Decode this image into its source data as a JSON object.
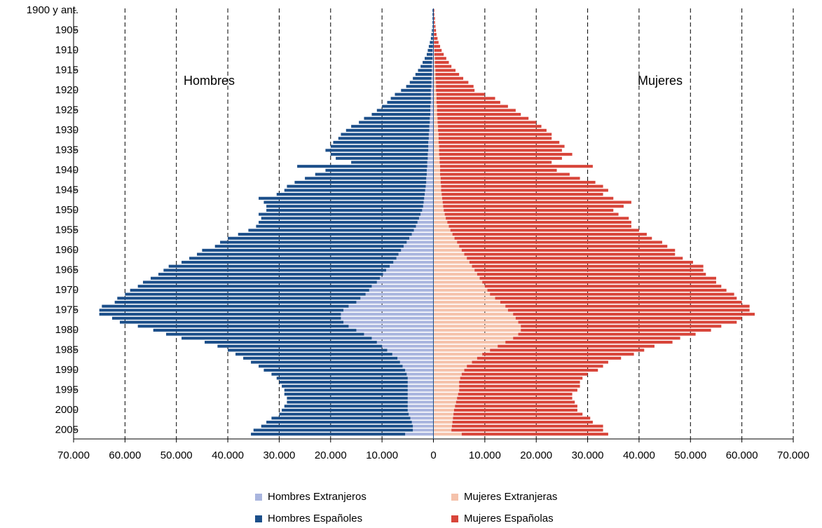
{
  "chart_data": {
    "type": "pyramid",
    "annotations": [
      "Hombres",
      "Mujeres"
    ],
    "categories": [
      "1900 y ant.",
      null,
      null,
      null,
      null,
      "1905",
      null,
      null,
      null,
      null,
      "1910",
      null,
      null,
      null,
      null,
      "1915",
      null,
      null,
      null,
      null,
      "1920",
      null,
      null,
      null,
      null,
      "1925",
      null,
      null,
      null,
      null,
      "1930",
      null,
      null,
      null,
      null,
      "1935",
      null,
      null,
      null,
      null,
      "1940",
      null,
      null,
      null,
      null,
      "1945",
      null,
      null,
      null,
      null,
      "1950",
      null,
      null,
      null,
      null,
      "1955",
      null,
      null,
      null,
      null,
      "1960",
      null,
      null,
      null,
      null,
      "1965",
      null,
      null,
      null,
      null,
      "1970",
      null,
      null,
      null,
      null,
      "1975",
      null,
      null,
      null,
      null,
      "1980",
      null,
      null,
      null,
      null,
      "1985",
      null,
      null,
      null,
      null,
      "1990",
      null,
      null,
      null,
      null,
      "1995",
      null,
      null,
      null,
      null,
      "2000",
      null,
      null,
      null,
      null,
      "2005",
      null
    ],
    "series": [
      {
        "name": "Hombres Extranjeros",
        "color": "#a9b5de",
        "values": [
          -100,
          -100,
          -100,
          -100,
          -100,
          -100,
          -100,
          -100,
          -100,
          -100,
          -200,
          -200,
          -200,
          -300,
          -300,
          -300,
          -300,
          -400,
          -400,
          -400,
          -500,
          -500,
          -500,
          -500,
          -600,
          -600,
          -600,
          -700,
          -700,
          -800,
          -800,
          -900,
          -900,
          -1000,
          -1000,
          -1000,
          -1100,
          -1100,
          -1200,
          -1200,
          -1300,
          -1300,
          -1400,
          -1400,
          -1500,
          -1600,
          -1700,
          -1800,
          -1900,
          -2000,
          -2200,
          -2500,
          -2800,
          -3100,
          -3400,
          -3800,
          -4200,
          -4700,
          -5200,
          -5800,
          -6300,
          -6800,
          -7200,
          -7800,
          -8500,
          -9200,
          -9800,
          -10400,
          -11000,
          -12000,
          -12500,
          -13200,
          -14200,
          -15000,
          -16500,
          -17500,
          -18000,
          -18000,
          -17500,
          -16500,
          -15000,
          -13500,
          -12000,
          -11000,
          -10000,
          -9000,
          -8000,
          -7000,
          -6500,
          -6000,
          -5500,
          -5200,
          -5000,
          -5000,
          -5000,
          -5000,
          -5000,
          -5000,
          -5000,
          -5000,
          -5000,
          -4800,
          -4500,
          -4200,
          -4000,
          -4000,
          -5500
        ]
      },
      {
        "name": "Hombres Españoles",
        "color": "#1c4f8a",
        "values": [
          -100,
          -100,
          -100,
          -100,
          -100,
          -200,
          -300,
          -400,
          -600,
          -800,
          -900,
          -1100,
          -1500,
          -1800,
          -2200,
          -2700,
          -3200,
          -3600,
          -4200,
          -4900,
          -5800,
          -7000,
          -7800,
          -8500,
          -9400,
          -10400,
          -11400,
          -12800,
          -13800,
          -15200,
          -16200,
          -17100,
          -17600,
          -18500,
          -19000,
          -20000,
          -18900,
          -17900,
          -14800,
          -25300,
          -19700,
          -21700,
          -23600,
          -25600,
          -27000,
          -27400,
          -28800,
          -32200,
          -31100,
          -30500,
          -30300,
          -31500,
          -30700,
          -30900,
          -31100,
          -32200,
          -33800,
          -35300,
          -36300,
          -36700,
          -38700,
          -39200,
          -40300,
          -41200,
          -43000,
          -43300,
          -43700,
          -44600,
          -45500,
          -45500,
          -46500,
          -46800,
          -47300,
          -47000,
          -48000,
          -47500,
          -47000,
          -44500,
          -43500,
          -41000,
          -39500,
          -38500,
          -37000,
          -33500,
          -32000,
          -31000,
          -30500,
          -30000,
          -29000,
          -28000,
          -27500,
          -26300,
          -25500,
          -25000,
          -24500,
          -24000,
          -24000,
          -23500,
          -23500,
          -24000,
          -24500,
          -25200,
          -27000,
          -28300,
          -29500,
          -31000,
          -30000
        ]
      },
      {
        "name": "Mujeres Extranjeras",
        "color": "#f5c2ab",
        "values": [
          100,
          100,
          100,
          100,
          100,
          100,
          100,
          100,
          100,
          100,
          200,
          200,
          300,
          300,
          300,
          400,
          400,
          400,
          500,
          500,
          500,
          600,
          600,
          600,
          700,
          700,
          700,
          800,
          800,
          900,
          900,
          1000,
          1000,
          1000,
          1100,
          1100,
          1100,
          1200,
          1200,
          1300,
          1300,
          1300,
          1400,
          1400,
          1500,
          1500,
          1600,
          1700,
          1800,
          1900,
          2000,
          2200,
          2400,
          2700,
          3000,
          3300,
          3700,
          4100,
          4600,
          5000,
          5500,
          6000,
          6500,
          7000,
          7500,
          8000,
          8500,
          9000,
          9500,
          10000,
          10500,
          11000,
          12000,
          13000,
          14000,
          14500,
          15500,
          16000,
          16500,
          17000,
          17000,
          16500,
          15500,
          14000,
          12500,
          11000,
          9500,
          8500,
          7500,
          6500,
          6000,
          5500,
          5200,
          5000,
          5000,
          5000,
          4800,
          4600,
          4400,
          4200,
          4000,
          3900,
          3800,
          3700,
          3600,
          3500,
          5500
        ]
      },
      {
        "name": "Mujeres Españolas",
        "color": "#d8453a",
        "values": [
          100,
          100,
          200,
          200,
          300,
          400,
          500,
          700,
          900,
          1200,
          1400,
          1800,
          2200,
          2700,
          3200,
          3900,
          4600,
          5400,
          6300,
          7300,
          7500,
          9400,
          11400,
          12400,
          13800,
          15300,
          16300,
          17700,
          19200,
          20100,
          21100,
          22000,
          22000,
          23500,
          24400,
          23900,
          25900,
          23800,
          21800,
          29700,
          22700,
          25200,
          27100,
          30100,
          31500,
          32500,
          31400,
          33300,
          36700,
          35100,
          33000,
          33800,
          35600,
          35800,
          35500,
          36700,
          37800,
          38400,
          39900,
          40500,
          41500,
          41000,
          42000,
          43500,
          45000,
          44500,
          44500,
          46000,
          45500,
          46000,
          46500,
          47500,
          47000,
          47000,
          47500,
          47000,
          47000,
          44000,
          42500,
          39000,
          37000,
          34500,
          32500,
          32500,
          30500,
          30000,
          29500,
          28000,
          26500,
          26500,
          26000,
          24500,
          23800,
          23500,
          23500,
          23000,
          22200,
          22400,
          23100,
          23800,
          24000,
          25100,
          26700,
          27300,
          29400,
          29500,
          28500
        ]
      }
    ],
    "stacked": true,
    "xlim": [
      -70000,
      70000
    ],
    "xticks": [
      {
        "value": -70000,
        "label": "70.000"
      },
      {
        "value": -60000,
        "label": "60.000"
      },
      {
        "value": -50000,
        "label": "50.000"
      },
      {
        "value": -40000,
        "label": "40.000"
      },
      {
        "value": -30000,
        "label": "30.000"
      },
      {
        "value": -20000,
        "label": "20.000"
      },
      {
        "value": -10000,
        "label": "10.000"
      },
      0,
      {
        "value": 10000,
        "label": "10.000"
      },
      {
        "value": 20000,
        "label": "20.000"
      },
      {
        "value": 30000,
        "label": "30.000"
      },
      {
        "value": 40000,
        "label": "40.000"
      },
      {
        "value": 50000,
        "label": "50.000"
      },
      {
        "value": 60000,
        "label": "60.000"
      },
      {
        "value": 70000,
        "label": "70.000"
      }
    ],
    "grid": true
  }
}
